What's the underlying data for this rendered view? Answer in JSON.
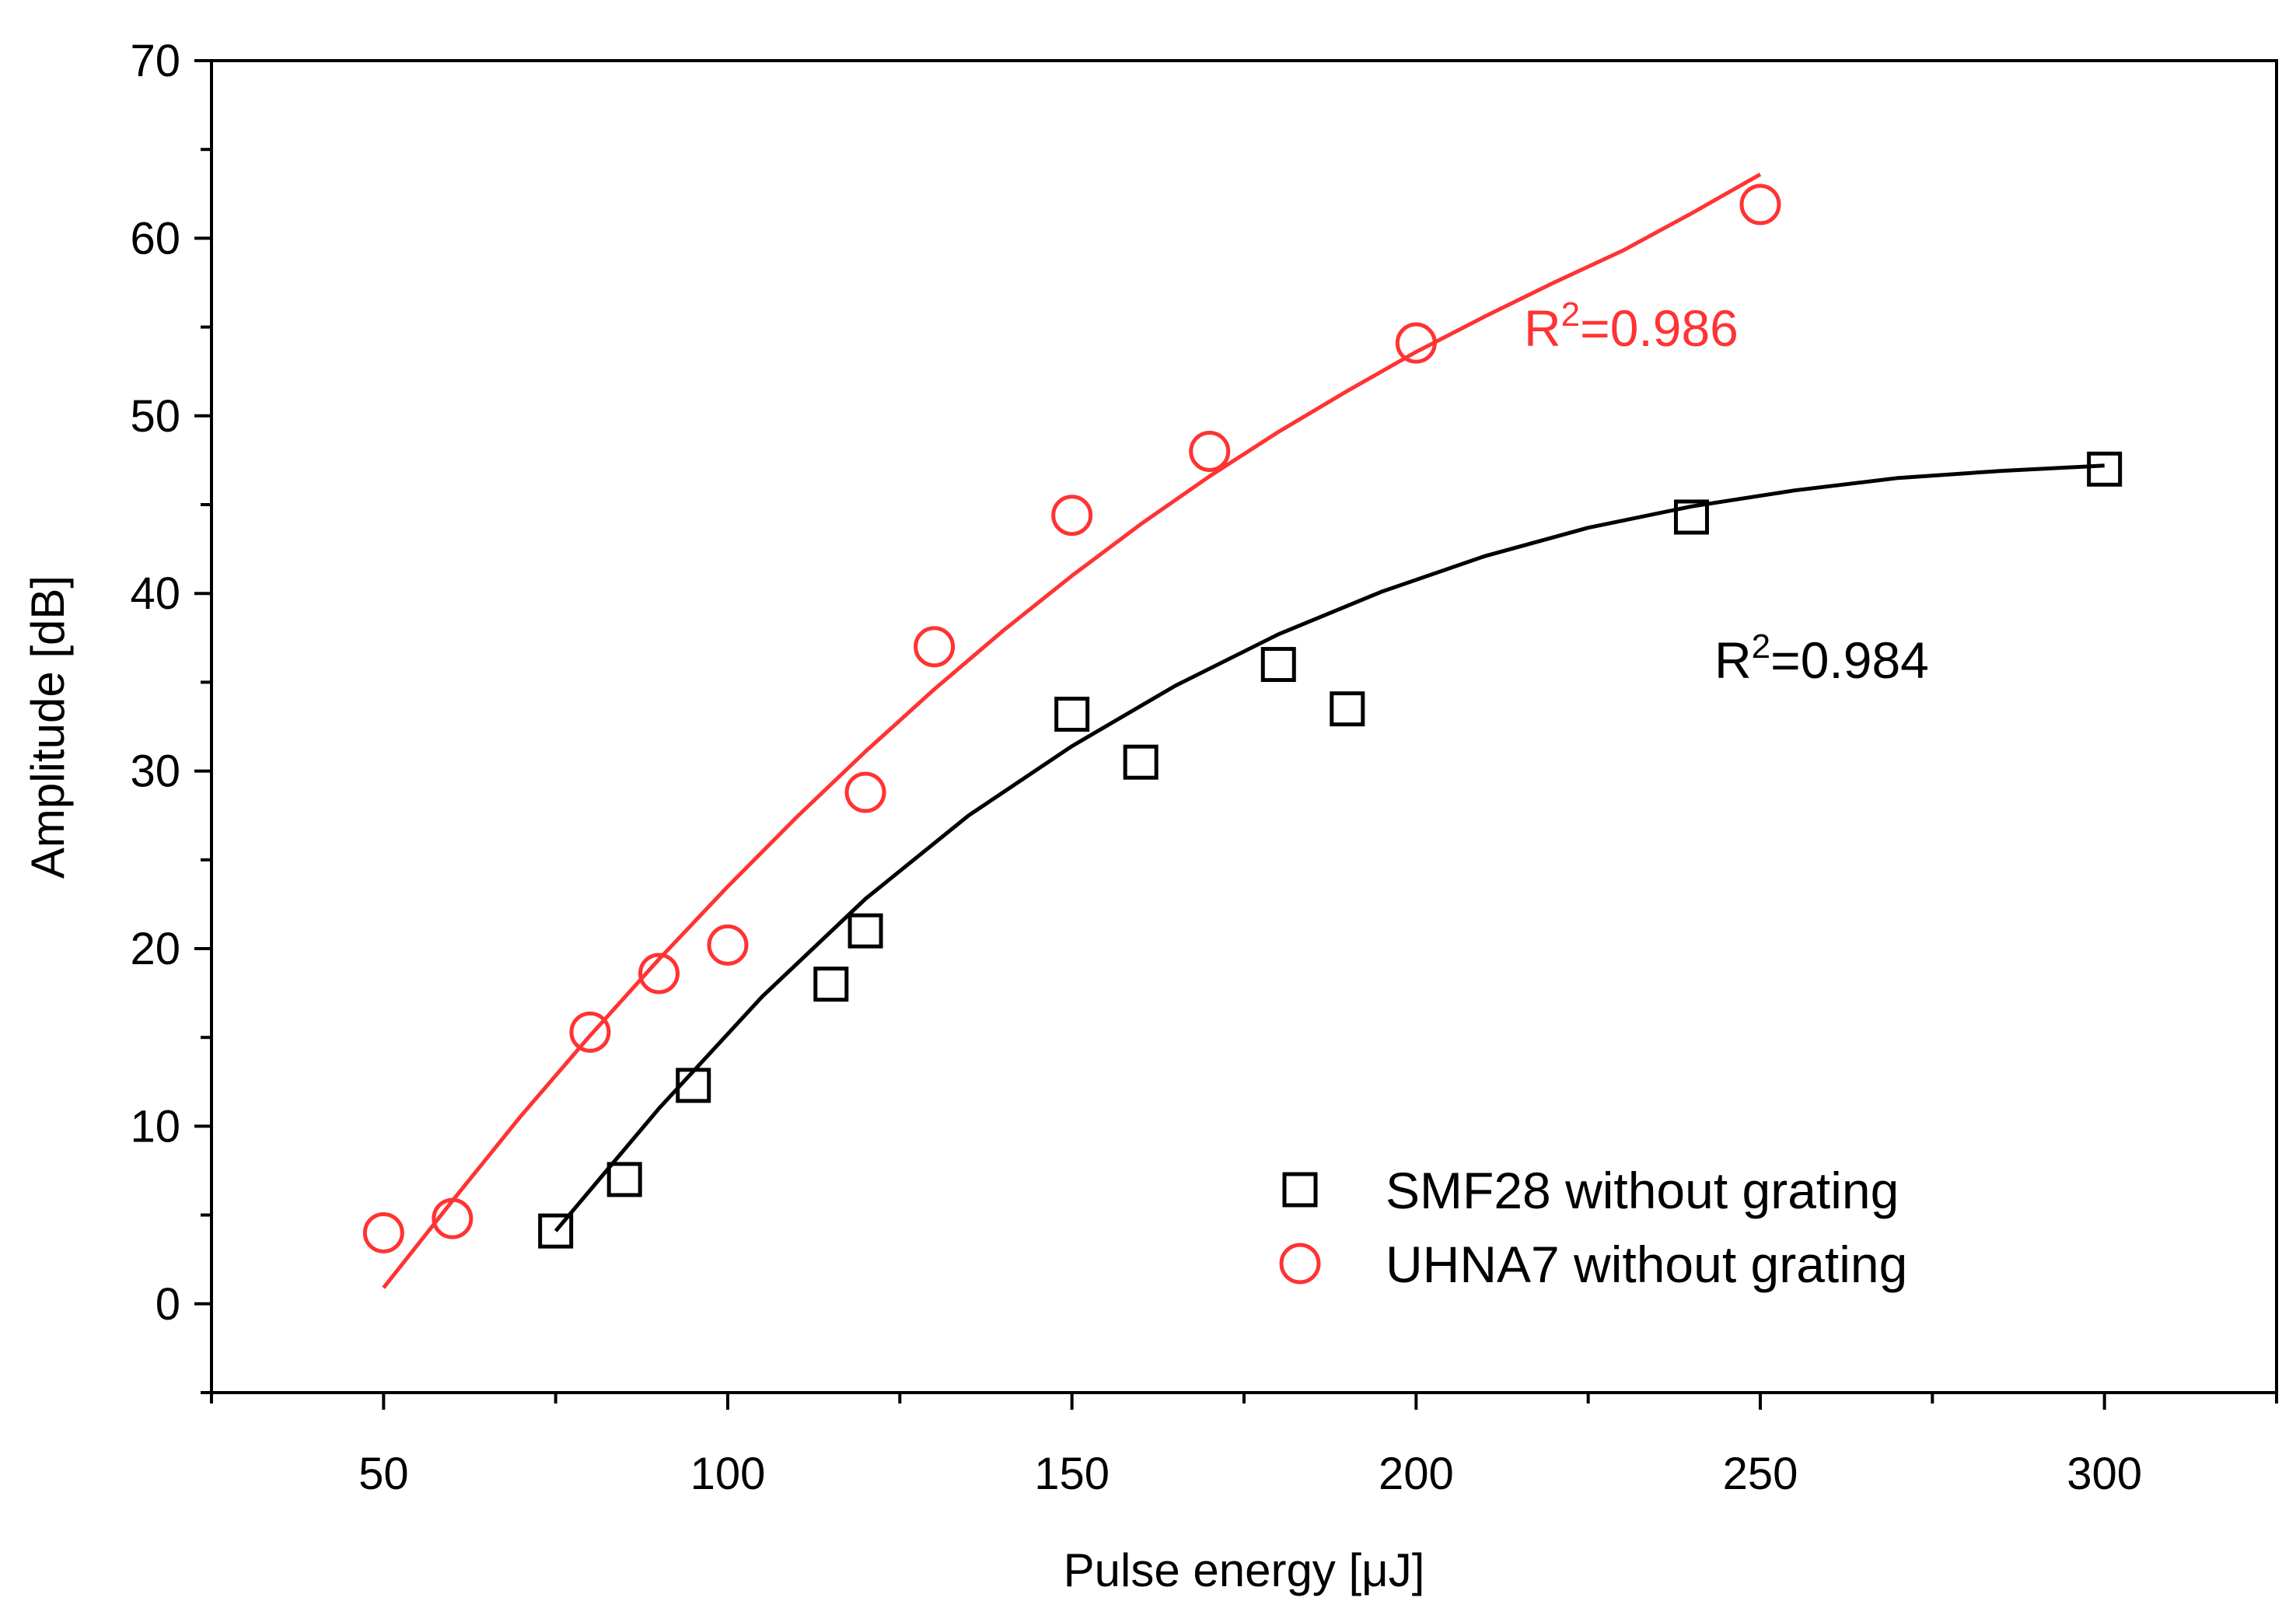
{
  "chart_data": {
    "type": "scatter",
    "title": "",
    "xlabel": "Pulse energy [μJ]",
    "ylabel": "Amplitude [dB]",
    "xlim": [
      25,
      325
    ],
    "ylim": [
      -5,
      70
    ],
    "xticks": [
      50,
      100,
      150,
      200,
      250,
      300
    ],
    "yticks": [
      0,
      10,
      20,
      30,
      40,
      50,
      60,
      70
    ],
    "xtick_labels": [
      "50",
      "100",
      "150",
      "200",
      "250",
      "300"
    ],
    "ytick_labels": [
      "0",
      "10",
      "20",
      "30",
      "40",
      "50",
      "60",
      "70"
    ],
    "grid": false,
    "legend_position": "bottom-right",
    "series": [
      {
        "name": "SMF28 without grating",
        "marker": "square",
        "color": "#000000",
        "x": [
          75,
          85,
          95,
          115,
          120,
          150,
          160,
          180,
          190,
          240,
          300
        ],
        "y": [
          4.1,
          7.0,
          12.3,
          18.0,
          21.0,
          33.2,
          30.5,
          36.0,
          33.5,
          44.3,
          47.0
        ],
        "fit_x": [
          75,
          90,
          105,
          120,
          135,
          150,
          165,
          180,
          195,
          210,
          225,
          240,
          255,
          270,
          285,
          300
        ],
        "fit_y": [
          4.1,
          11.0,
          17.3,
          22.8,
          27.5,
          31.4,
          34.8,
          37.7,
          40.1,
          42.1,
          43.7,
          44.9,
          45.8,
          46.5,
          46.9,
          47.2
        ],
        "annotation": "R²=0.984"
      },
      {
        "name": "UHNA7 without grating",
        "marker": "circle",
        "color": "#ff3333",
        "x": [
          50,
          60,
          80,
          90,
          100,
          120,
          130,
          150,
          170,
          200,
          250
        ],
        "y": [
          4.0,
          4.8,
          15.3,
          18.6,
          20.2,
          28.8,
          37.0,
          44.4,
          48.0,
          54.1,
          61.9
        ],
        "fit_x": [
          50,
          60,
          70,
          80,
          90,
          100,
          110,
          120,
          130,
          140,
          150,
          160,
          170,
          180,
          190,
          200,
          210,
          220,
          230,
          240,
          250
        ],
        "fit_y": [
          0.9,
          5.8,
          10.6,
          15.1,
          19.4,
          23.5,
          27.4,
          31.1,
          34.6,
          37.9,
          41.0,
          43.9,
          46.6,
          49.1,
          51.4,
          53.6,
          55.6,
          57.5,
          59.3,
          61.4,
          63.6
        ],
        "annotation": "R²=0.986"
      }
    ]
  }
}
